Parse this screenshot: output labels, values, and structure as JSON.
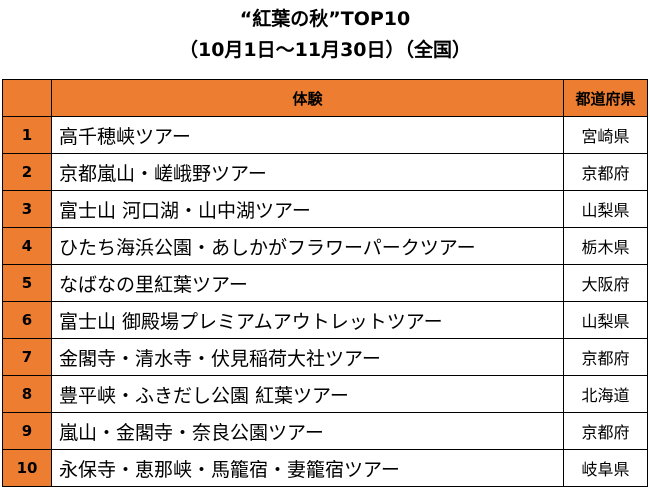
{
  "title_line1": "“紅葉の秋”TOP10",
  "title_line2": "（10月1日〜11月30日）（全国）",
  "table": {
    "headers": {
      "rank": "",
      "experience": "体験",
      "prefecture": "都道府県"
    },
    "rows": [
      {
        "rank": "1",
        "experience": "高千穂峡ツアー",
        "prefecture": "宮崎県"
      },
      {
        "rank": "2",
        "experience": "京都嵐山・嵯峨野ツアー",
        "prefecture": "京都府"
      },
      {
        "rank": "3",
        "experience": "富士山 河口湖・山中湖ツアー",
        "prefecture": "山梨県"
      },
      {
        "rank": "4",
        "experience": "ひたち海浜公園・あしかがフラワーパークツアー",
        "prefecture": "栃木県"
      },
      {
        "rank": "5",
        "experience": "なばなの里紅葉ツアー",
        "prefecture": "大阪府"
      },
      {
        "rank": "6",
        "experience": "富士山 御殿場プレミアムアウトレットツアー",
        "prefecture": "山梨県"
      },
      {
        "rank": "7",
        "experience": "金閣寺・清水寺・伏見稲荷大社ツアー",
        "prefecture": "京都府"
      },
      {
        "rank": "8",
        "experience": "豊平峡・ふきだし公園 紅葉ツアー",
        "prefecture": "北海道"
      },
      {
        "rank": "9",
        "experience": "嵐山・金閣寺・奈良公園ツアー",
        "prefecture": "京都府"
      },
      {
        "rank": "10",
        "experience": "永保寺・恵那峡・馬籠宿・妻籠宿ツアー",
        "prefecture": "岐阜県"
      }
    ]
  },
  "colors": {
    "header_and_rank_fill": "#ED7D31",
    "border": "#000000"
  }
}
